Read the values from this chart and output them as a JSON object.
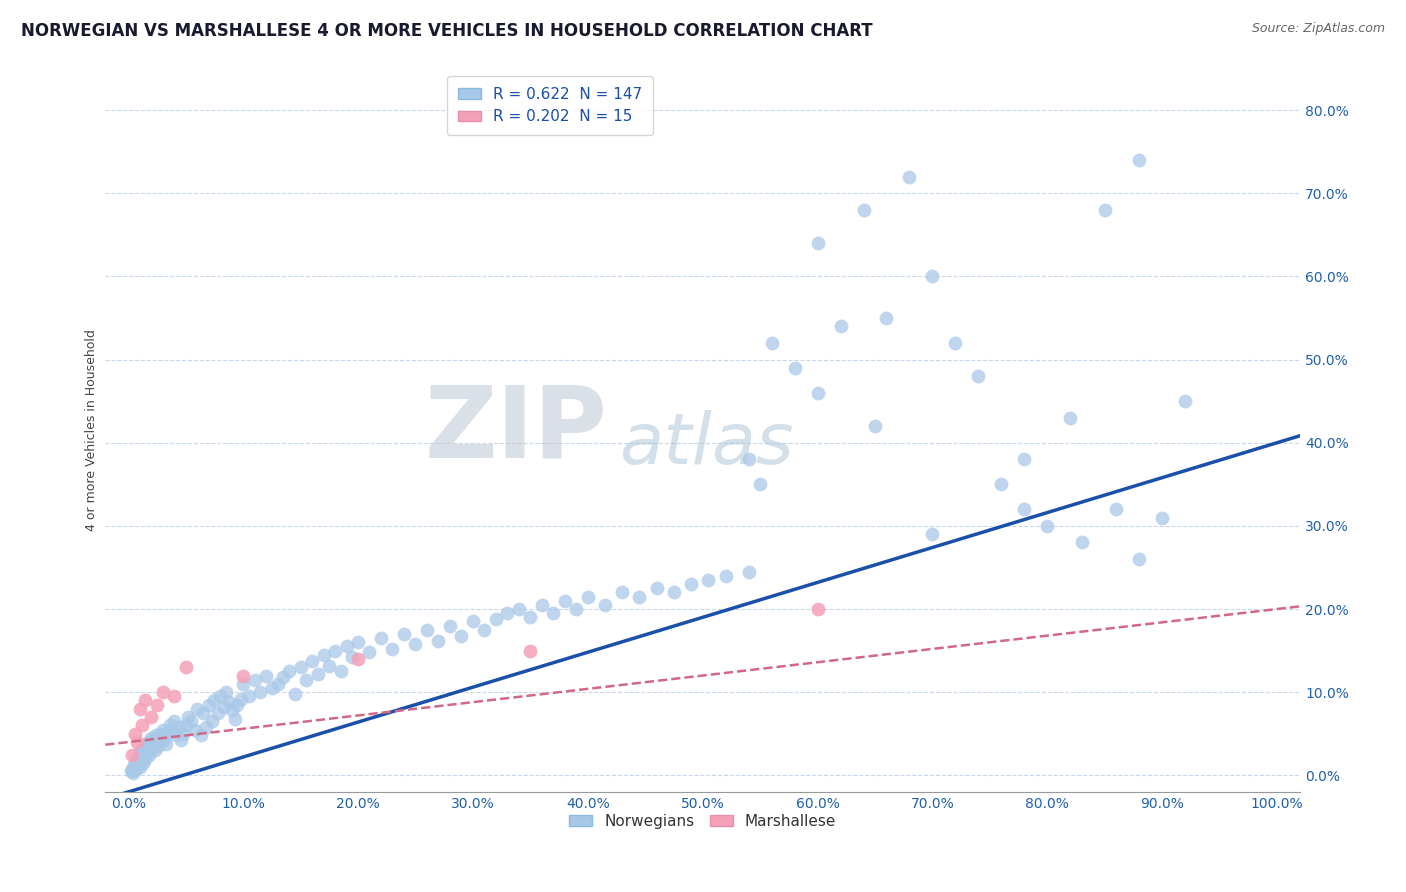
{
  "title": "NORWEGIAN VS MARSHALLESE 4 OR MORE VEHICLES IN HOUSEHOLD CORRELATION CHART",
  "source": "Source: ZipAtlas.com",
  "ylabel": "4 or more Vehicles in Household",
  "norwegian_R": 0.622,
  "norwegian_N": 147,
  "marshallese_R": 0.202,
  "marshallese_N": 15,
  "norwegian_color": "#a8c8e8",
  "marshallese_color": "#f4a0b8",
  "norwegian_line_color": "#1a50a8",
  "marshallese_line_color": "#d06888",
  "background_color": "#ffffff",
  "grid_color": "#c8d8e8",
  "watermark_ZIP": "ZIP",
  "watermark_atlas": "atlas",
  "xlim": [
    -0.02,
    1.02
  ],
  "ylim": [
    -0.02,
    0.85
  ],
  "xtick_vals": [
    0.0,
    0.1,
    0.2,
    0.3,
    0.4,
    0.5,
    0.6,
    0.7,
    0.8,
    0.9,
    1.0
  ],
  "ytick_vals": [
    0.0,
    0.1,
    0.2,
    0.3,
    0.4,
    0.5,
    0.6,
    0.7,
    0.8
  ],
  "nor_line_x0": 0.0,
  "nor_line_y0": -0.02,
  "nor_line_x1": 1.0,
  "nor_line_y1": 0.4,
  "mar_line_x0": 0.0,
  "mar_line_y0": 0.04,
  "mar_line_x1": 1.0,
  "mar_line_y1": 0.2,
  "legend_text_color": "#1a50a8",
  "title_fontsize": 12,
  "axis_label_fontsize": 9,
  "tick_fontsize": 10,
  "legend_fontsize": 11,
  "nor_x": [
    0.002,
    0.003,
    0.004,
    0.005,
    0.005,
    0.006,
    0.006,
    0.007,
    0.007,
    0.008,
    0.008,
    0.009,
    0.009,
    0.01,
    0.01,
    0.011,
    0.011,
    0.012,
    0.012,
    0.013,
    0.013,
    0.014,
    0.015,
    0.015,
    0.016,
    0.017,
    0.018,
    0.019,
    0.02,
    0.02,
    0.021,
    0.022,
    0.023,
    0.024,
    0.025,
    0.026,
    0.027,
    0.028,
    0.03,
    0.031,
    0.032,
    0.033,
    0.035,
    0.036,
    0.038,
    0.04,
    0.042,
    0.044,
    0.046,
    0.048,
    0.05,
    0.052,
    0.055,
    0.058,
    0.06,
    0.063,
    0.065,
    0.068,
    0.07,
    0.073,
    0.075,
    0.078,
    0.08,
    0.083,
    0.085,
    0.088,
    0.09,
    0.093,
    0.095,
    0.098,
    0.1,
    0.105,
    0.11,
    0.115,
    0.12,
    0.125,
    0.13,
    0.135,
    0.14,
    0.145,
    0.15,
    0.155,
    0.16,
    0.165,
    0.17,
    0.175,
    0.18,
    0.185,
    0.19,
    0.195,
    0.2,
    0.21,
    0.22,
    0.23,
    0.24,
    0.25,
    0.26,
    0.27,
    0.28,
    0.29,
    0.3,
    0.31,
    0.32,
    0.33,
    0.34,
    0.35,
    0.36,
    0.37,
    0.38,
    0.39,
    0.4,
    0.415,
    0.43,
    0.445,
    0.46,
    0.475,
    0.49,
    0.505,
    0.52,
    0.54,
    0.56,
    0.58,
    0.6,
    0.62,
    0.64,
    0.66,
    0.68,
    0.7,
    0.72,
    0.74,
    0.76,
    0.78,
    0.8,
    0.83,
    0.86,
    0.88,
    0.9,
    0.54,
    0.6,
    0.65,
    0.55,
    0.7,
    0.78,
    0.82,
    0.85,
    0.88,
    0.92
  ],
  "nor_y": [
    0.005,
    0.008,
    0.003,
    0.012,
    0.006,
    0.01,
    0.015,
    0.008,
    0.018,
    0.012,
    0.02,
    0.015,
    0.022,
    0.01,
    0.025,
    0.018,
    0.03,
    0.022,
    0.028,
    0.015,
    0.032,
    0.025,
    0.02,
    0.035,
    0.028,
    0.04,
    0.025,
    0.03,
    0.035,
    0.045,
    0.038,
    0.042,
    0.03,
    0.048,
    0.04,
    0.035,
    0.045,
    0.05,
    0.055,
    0.042,
    0.048,
    0.038,
    0.052,
    0.06,
    0.055,
    0.065,
    0.048,
    0.058,
    0.042,
    0.05,
    0.06,
    0.07,
    0.065,
    0.055,
    0.08,
    0.048,
    0.075,
    0.058,
    0.085,
    0.065,
    0.09,
    0.075,
    0.095,
    0.082,
    0.1,
    0.088,
    0.078,
    0.068,
    0.085,
    0.092,
    0.11,
    0.095,
    0.115,
    0.1,
    0.12,
    0.105,
    0.11,
    0.118,
    0.125,
    0.098,
    0.13,
    0.115,
    0.138,
    0.122,
    0.145,
    0.132,
    0.15,
    0.125,
    0.155,
    0.142,
    0.16,
    0.148,
    0.165,
    0.152,
    0.17,
    0.158,
    0.175,
    0.162,
    0.18,
    0.168,
    0.185,
    0.175,
    0.188,
    0.195,
    0.2,
    0.19,
    0.205,
    0.195,
    0.21,
    0.2,
    0.215,
    0.205,
    0.22,
    0.215,
    0.225,
    0.22,
    0.23,
    0.235,
    0.24,
    0.245,
    0.52,
    0.49,
    0.64,
    0.54,
    0.68,
    0.55,
    0.72,
    0.6,
    0.52,
    0.48,
    0.35,
    0.38,
    0.3,
    0.28,
    0.32,
    0.26,
    0.31,
    0.38,
    0.46,
    0.42,
    0.35,
    0.29,
    0.32,
    0.43,
    0.68,
    0.74,
    0.45
  ]
}
